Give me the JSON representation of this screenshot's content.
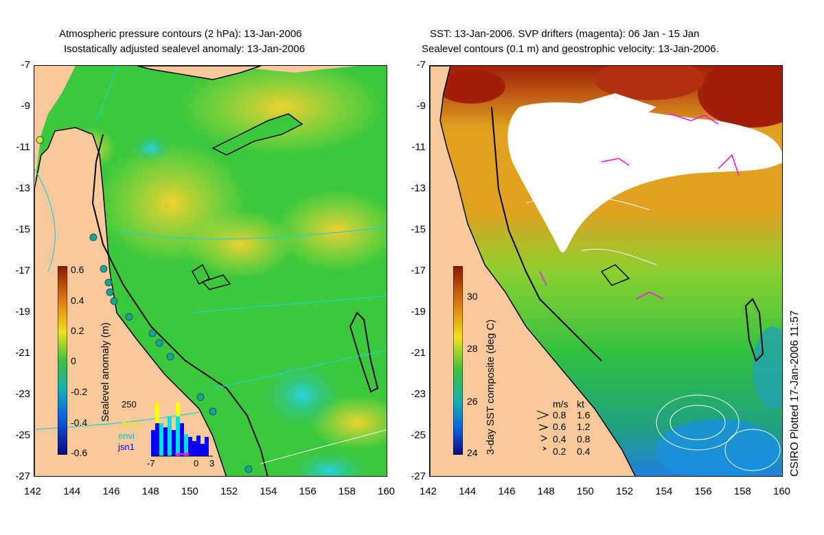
{
  "left_panel": {
    "title_line1": "Atmospheric pressure contours (2 hPa): 13-Jan-2006",
    "title_line2": "Isostatically adjusted sealevel anomaly: 13-Jan-2006",
    "colorbar_label": "Sealevel anomaly (m)",
    "colorbar_ticks": [
      "0.6",
      "0.4",
      "0.2",
      "0",
      "-0.2",
      "-0.4",
      "-0.6"
    ],
    "histogram": {
      "ymax_label": "250",
      "legend": [
        {
          "label": "GFO",
          "color": "#ffff00"
        },
        {
          "label": "envi",
          "color": "#00e0e0"
        },
        {
          "label": "jsn1",
          "color": "#0000ff"
        }
      ],
      "x_ticks": [
        "-7",
        "0",
        "3"
      ]
    }
  },
  "right_panel": {
    "title_line1": "SST: 13-Jan-2006. SVP drifters (magenta): 06 Jan - 15 Jan",
    "title_line2": "Sealevel contours (0.1 m) and geostrophic velocity: 13-Jan-2006.",
    "colorbar_label": "3-day SST composite (deg C)",
    "colorbar_ticks": [
      "30",
      "28",
      "26",
      "24"
    ],
    "velocity_legend": {
      "header_ms": "m/s",
      "header_kt": "kt",
      "rows": [
        {
          "ms": "0.8",
          "kt": "1.6"
        },
        {
          "ms": "0.6",
          "kt": "1.2"
        },
        {
          "ms": "0.4",
          "kt": "0.8"
        },
        {
          "ms": "0.2",
          "kt": "0.4"
        }
      ]
    },
    "credit": "CSIRO Plotted 17-Jan-2006 11:57"
  },
  "axes": {
    "lat_ticks": [
      "-7",
      "-9",
      "-11",
      "-13",
      "-15",
      "-17",
      "-19",
      "-21",
      "-23",
      "-25",
      "-27"
    ],
    "lon_ticks": [
      "142",
      "144",
      "146",
      "148",
      "150",
      "152",
      "154",
      "156",
      "158",
      "160"
    ]
  },
  "colors": {
    "land": "#f9c99b",
    "ocean_green": "#3cc83c",
    "anomaly_yellow": "#d8e63a",
    "sst_hot": "#a01e0a",
    "sst_mid": "#e0a020",
    "drifter": "#ff00ff"
  }
}
